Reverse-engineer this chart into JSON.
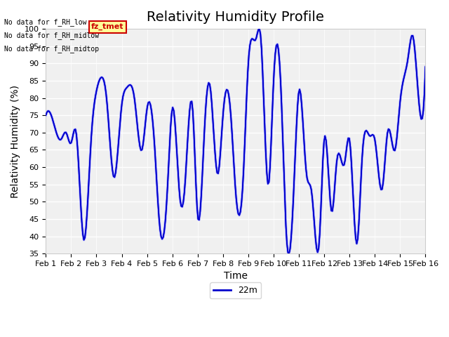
{
  "title": "Relativity Humidity Profile",
  "ylabel": "Relativity Humidity (%)",
  "xlabel": "Time",
  "ylim": [
    35,
    100
  ],
  "yticks": [
    35,
    40,
    45,
    50,
    55,
    60,
    65,
    70,
    75,
    80,
    85,
    90,
    95,
    100
  ],
  "xtick_labels": [
    "Feb 1",
    "Feb 2",
    "Feb 3",
    "Feb 4",
    "Feb 5",
    "Feb 6",
    "Feb 7",
    "Feb 8",
    "Feb 9",
    "Feb 10",
    "Feb 11",
    "Feb 12",
    "Feb 13",
    "Feb 14",
    "Feb 15",
    "Feb 16"
  ],
  "no_data_texts": [
    "No data for f_RH_low",
    "No data for f_RH_midlow",
    "No data for f_RH_midtop"
  ],
  "legend_label": "22m",
  "line_color": "#0000cc",
  "line_color2": "#aaaaff",
  "legend_box_color": "#ffff99",
  "legend_box_edge": "#cc0000",
  "legend_text_color": "#cc0000",
  "bg_color": "#e8e8e8",
  "plot_bg_color": "#f0f0f0",
  "title_fontsize": 14,
  "axis_fontsize": 10,
  "tick_fontsize": 8
}
